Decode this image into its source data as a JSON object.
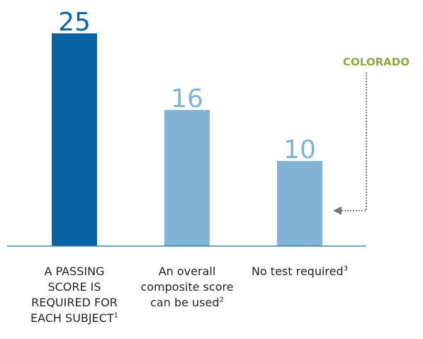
{
  "chart_data": {
    "type": "bar",
    "categories": [
      "A PASSING SCORE IS REQUIRED FOR EACH SUBJECT",
      "An overall composite score can be used",
      "No test required"
    ],
    "footnotes": [
      "1",
      "2",
      "3"
    ],
    "values": [
      25,
      16,
      10
    ],
    "colors": [
      "#0b63a5",
      "#80b3d6",
      "#80b3d6"
    ],
    "ylim": [
      0,
      25
    ],
    "annotation": "COLORADO"
  }
}
